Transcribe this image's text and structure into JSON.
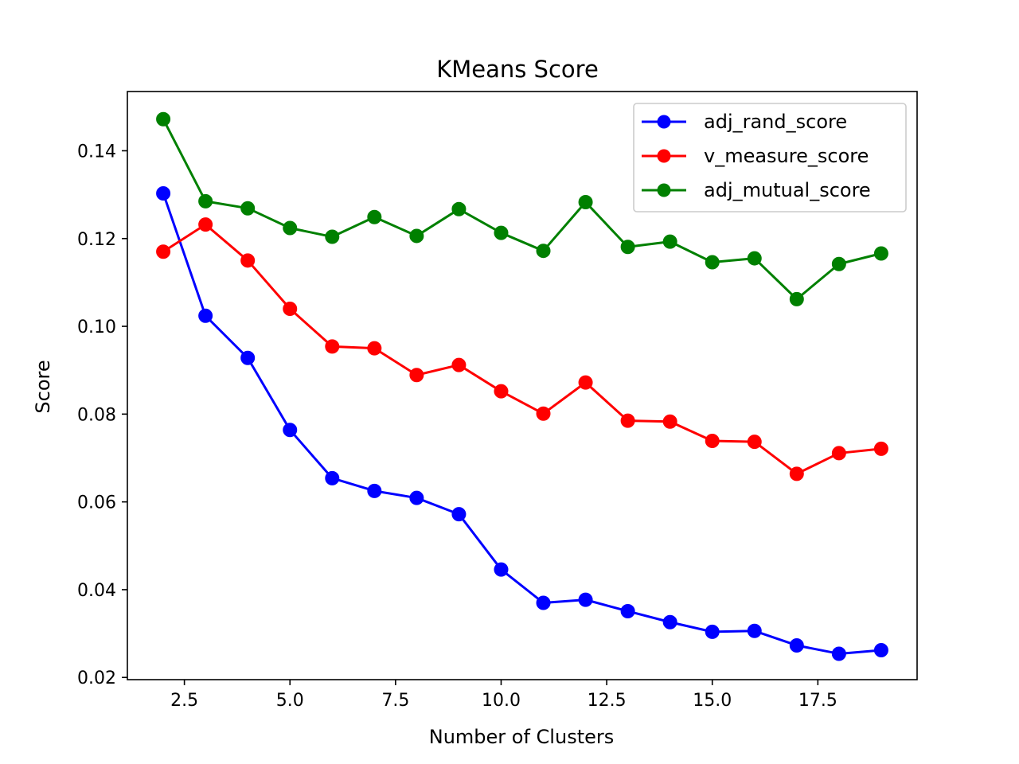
{
  "chart_data": {
    "type": "line",
    "title": "KMeans Score",
    "xlabel": "Number of Clusters",
    "ylabel": "Score",
    "xlim": [
      1.15,
      19.85
    ],
    "ylim": [
      0.0195,
      0.1535
    ],
    "xticks": [
      2.5,
      5.0,
      7.5,
      10.0,
      12.5,
      15.0,
      17.5
    ],
    "xtick_labels": [
      "2.5",
      "5.0",
      "7.5",
      "10.0",
      "12.5",
      "15.0",
      "17.5"
    ],
    "yticks": [
      0.02,
      0.04,
      0.06,
      0.08,
      0.1,
      0.12,
      0.14
    ],
    "ytick_labels": [
      "0.02",
      "0.04",
      "0.06",
      "0.08",
      "0.10",
      "0.12",
      "0.14"
    ],
    "grid": false,
    "legend_position": "top-right",
    "x": [
      2,
      3,
      4,
      5,
      6,
      7,
      8,
      9,
      10,
      11,
      12,
      13,
      14,
      15,
      16,
      17,
      18,
      19
    ],
    "series": [
      {
        "name": "adj_rand_score",
        "color": "#0000ff",
        "marker": "circle",
        "values": [
          0.1303,
          0.1024,
          0.0928,
          0.0764,
          0.0654,
          0.0625,
          0.0609,
          0.0572,
          0.0446,
          0.037,
          0.0377,
          0.0351,
          0.0326,
          0.0304,
          0.0306,
          0.0273,
          0.0254,
          0.0262
        ]
      },
      {
        "name": "v_measure_score",
        "color": "#ff0000",
        "marker": "circle",
        "values": [
          0.117,
          0.1232,
          0.115,
          0.104,
          0.0954,
          0.095,
          0.0889,
          0.0912,
          0.0852,
          0.0801,
          0.0872,
          0.0785,
          0.0783,
          0.0739,
          0.0737,
          0.0664,
          0.0711,
          0.0721
        ]
      },
      {
        "name": "adj_mutual_score",
        "color": "#008000",
        "marker": "circle",
        "values": [
          0.1472,
          0.1285,
          0.1269,
          0.1224,
          0.1204,
          0.1249,
          0.1206,
          0.1267,
          0.1213,
          0.1172,
          0.1283,
          0.1181,
          0.1193,
          0.1146,
          0.1155,
          0.1062,
          0.1142,
          0.1166
        ]
      }
    ]
  }
}
